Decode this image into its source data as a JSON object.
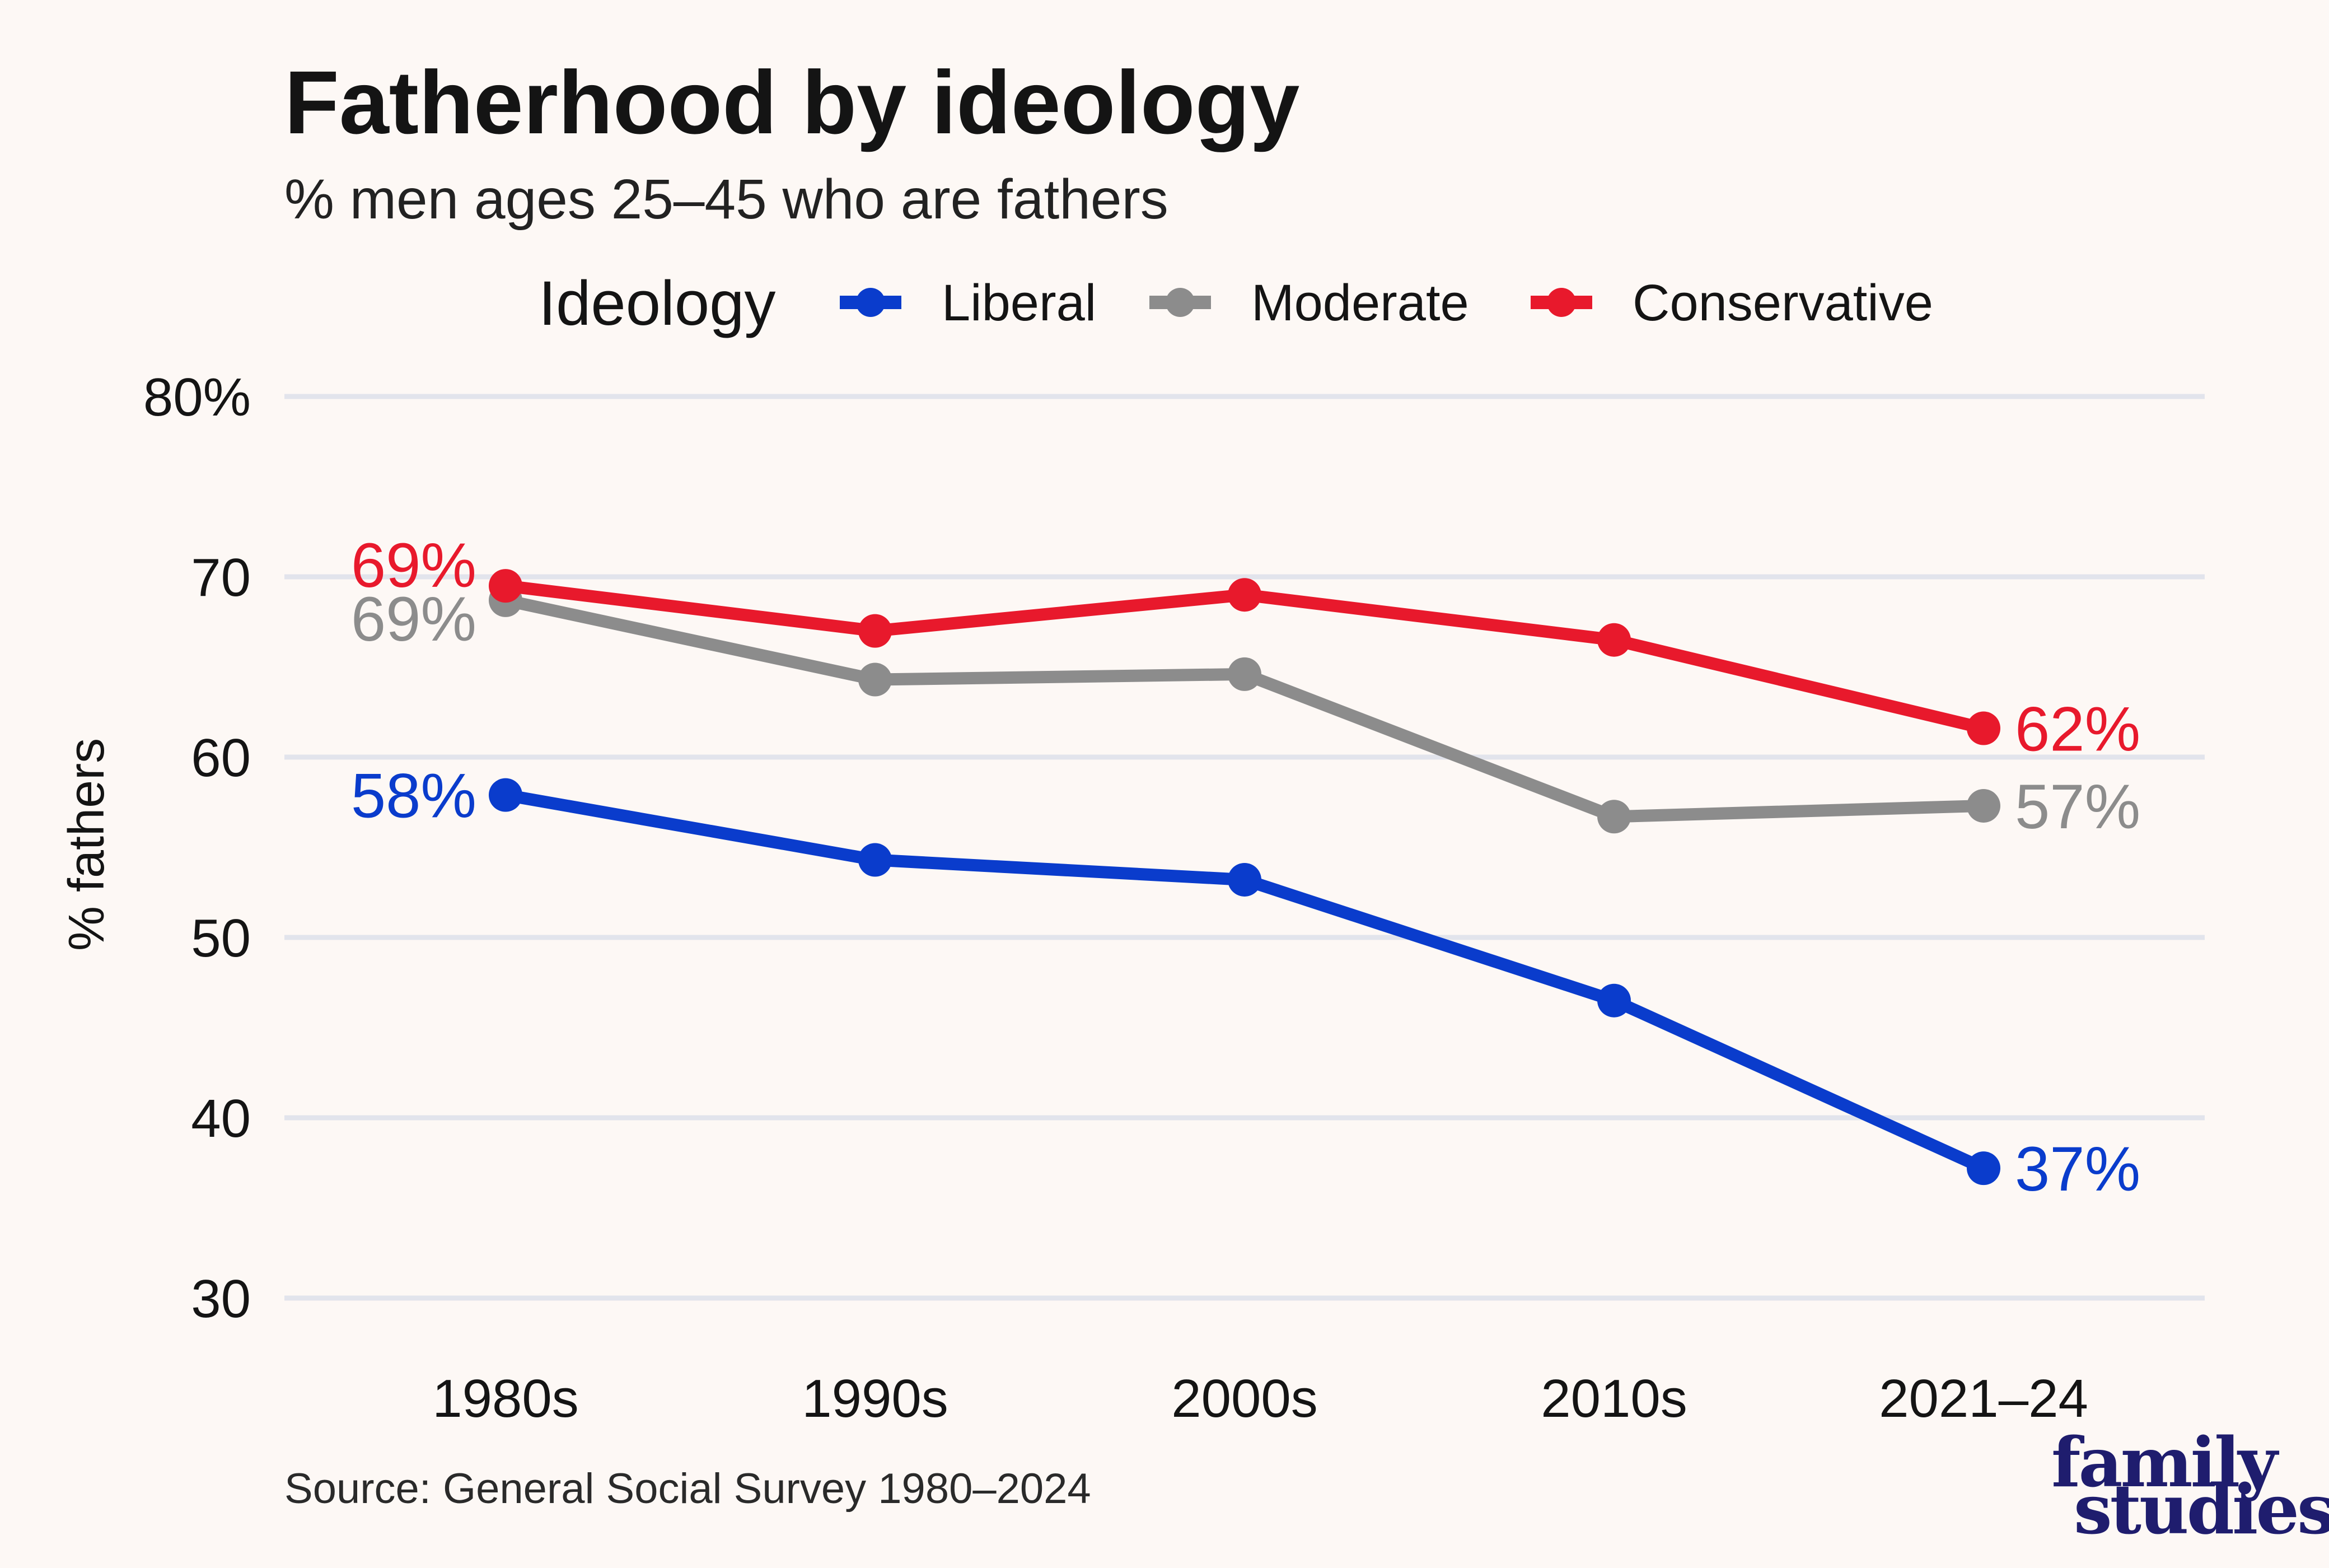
{
  "chart_data": {
    "type": "line",
    "title": "Fatherhood by ideology",
    "subtitle": "% men ages 25–45 who are fathers",
    "ylabel": "% fathers",
    "xlabel": "",
    "categories": [
      "1980s",
      "1990s",
      "2000s",
      "2010s",
      "2021–24"
    ],
    "ylim": [
      30,
      80
    ],
    "yticks": [
      80,
      70,
      60,
      50,
      40,
      30
    ],
    "ytick_labels": [
      "80%",
      "70",
      "60",
      "50",
      "40",
      "30"
    ],
    "grid": true,
    "legend": {
      "title": "Ideology",
      "placement": "top"
    },
    "series": [
      {
        "name": "Liberal",
        "color": "#0a3ccc",
        "values": [
          57.9,
          54.3,
          53.2,
          46.5,
          37.2
        ],
        "start_label": "58%",
        "end_label": "37%"
      },
      {
        "name": "Moderate",
        "color": "#8c8c8c",
        "values": [
          68.7,
          64.3,
          64.6,
          56.7,
          57.3
        ],
        "start_label": "69%",
        "end_label": "57%"
      },
      {
        "name": "Conservative",
        "color": "#e8192c",
        "values": [
          69.5,
          67.0,
          69.0,
          66.5,
          61.6
        ],
        "start_label": "69%",
        "end_label": "62%"
      }
    ],
    "source": "Source: General Social Survey 1980–2024"
  },
  "logo": {
    "line1": "family",
    "line2": "studies"
  }
}
